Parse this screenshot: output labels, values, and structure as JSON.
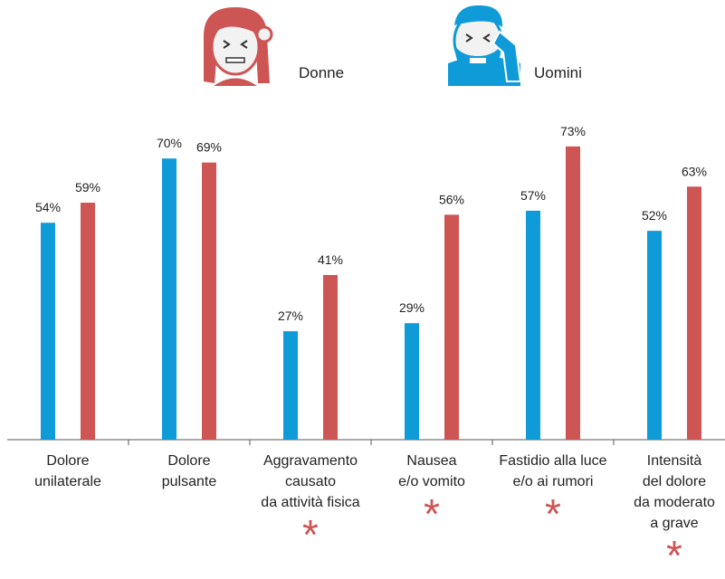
{
  "chart_data": {
    "type": "bar",
    "categories": [
      "Dolore\nunilaterale",
      "Dolore\npulsante",
      "Aggravamento\ncausato\nda attività fisica",
      "Nausea\ne/o vomito",
      "Fastidio alla luce\ne/o ai rumori",
      "Intensità\ndel dolore\nda moderato\na grave"
    ],
    "series": [
      {
        "name": "Uomini",
        "color": "#0f9ad8",
        "values": [
          54,
          70,
          27,
          29,
          57,
          52
        ],
        "value_labels": [
          "54%",
          "70%",
          "27%",
          "29%",
          "57%",
          "52%"
        ]
      },
      {
        "name": "Donne",
        "color": "#cd5554",
        "values": [
          59,
          69,
          41,
          56,
          73,
          63
        ],
        "value_labels": [
          "59%",
          "69%",
          "41%",
          "56%",
          "73%",
          "63%"
        ]
      }
    ],
    "significance": [
      null,
      null,
      "*",
      "*",
      "*",
      "*"
    ],
    "ylim": [
      0,
      100
    ]
  }
}
